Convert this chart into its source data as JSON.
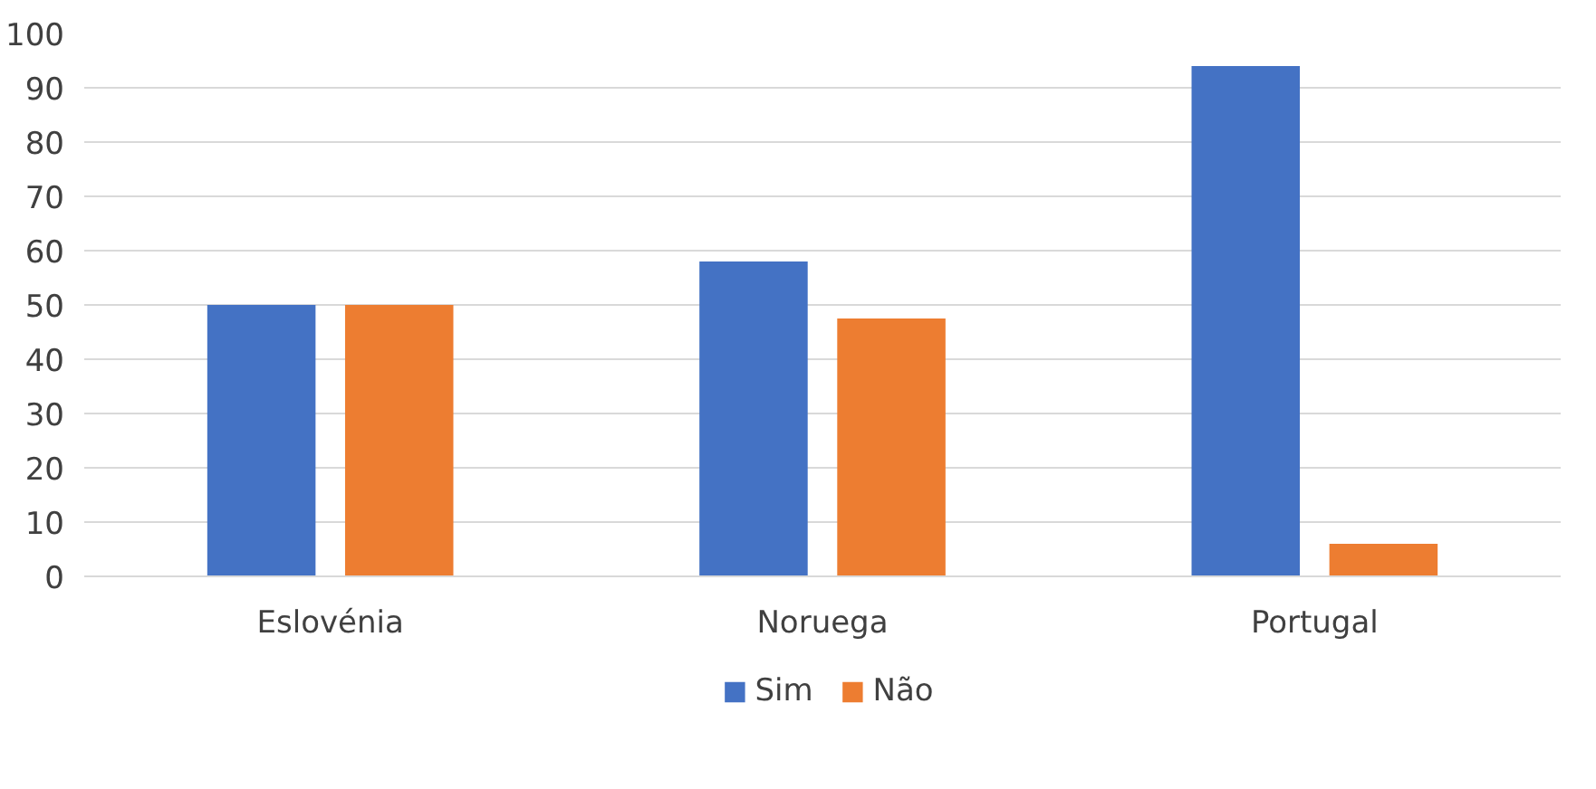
{
  "chart_data": {
    "type": "bar",
    "categories": [
      "Eslovénia",
      "Noruega",
      "Portugal"
    ],
    "series": [
      {
        "name": "Sim",
        "color": "#4472c4",
        "values": [
          50,
          58,
          94
        ]
      },
      {
        "name": "Não",
        "color": "#ed7d31",
        "values": [
          50,
          47.5,
          6
        ]
      }
    ],
    "ylim": [
      0,
      100
    ],
    "yticks": [
      0,
      10,
      20,
      30,
      40,
      50,
      60,
      70,
      80,
      90,
      100
    ],
    "grid": "y",
    "legend": "bottom"
  }
}
